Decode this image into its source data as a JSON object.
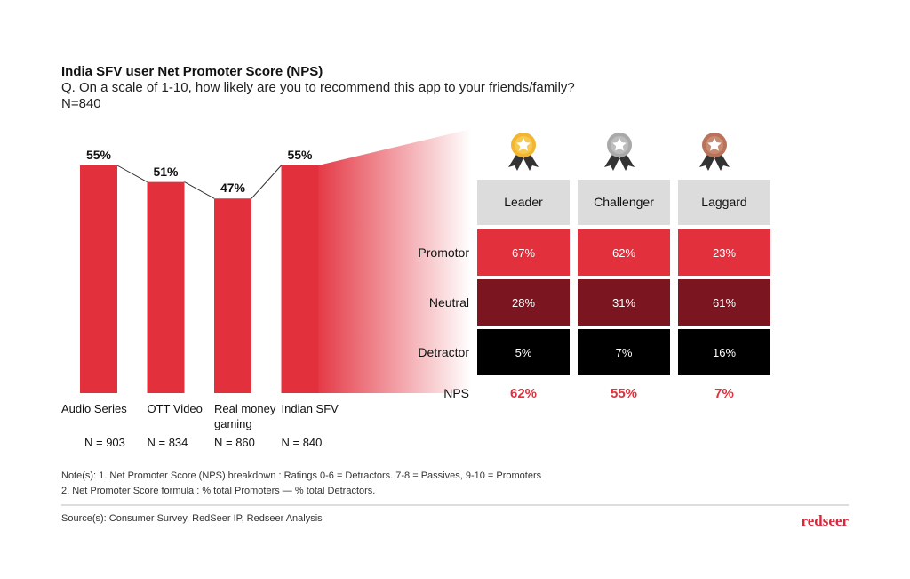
{
  "chart_data": {
    "type": "bar",
    "title": "India SFV user Net Promoter Score (NPS)",
    "subtitle": "Q. On a scale of 1-10, how likely are you to recommend this app to your friends/family?",
    "sample": "N=840",
    "categories": [
      "Audio Series",
      "OTT Video",
      "Real money gaming",
      "Indian SFV"
    ],
    "values": [
      55,
      51,
      47,
      55
    ],
    "value_labels": [
      "55%",
      "51%",
      "47%",
      "55%"
    ],
    "sample_labels": [
      "N = 903",
      "N = 834",
      "N = 860",
      "N = 840"
    ],
    "color": "#e3303d"
  },
  "table": {
    "columns": [
      "Leader",
      "Challenger",
      "Laggard"
    ],
    "rows": [
      {
        "label": "Promotor",
        "cells": [
          "67%",
          "62%",
          "23%"
        ],
        "color": "#e3303d"
      },
      {
        "label": "Neutral",
        "cells": [
          "28%",
          "31%",
          "61%"
        ],
        "color": "#7b1620"
      },
      {
        "label": "Detractor",
        "cells": [
          "5%",
          "7%",
          "16%"
        ],
        "color": "#000000"
      }
    ],
    "summary": {
      "label": "NPS",
      "cells": [
        "62%",
        "55%",
        "7%"
      ],
      "color": "#e3303d"
    }
  },
  "notes": [
    "Note(s): 1. Net Promoter Score (NPS) breakdown : Ratings 0-6 = Detractors. 7-8 = Passives, 9-10 = Promoters",
    "2. Net Promoter Score formula : % total Promoters — % total Detractors."
  ],
  "source": "Source(s): Consumer Survey, RedSeer IP, Redseer Analysis",
  "brand": "redseer"
}
